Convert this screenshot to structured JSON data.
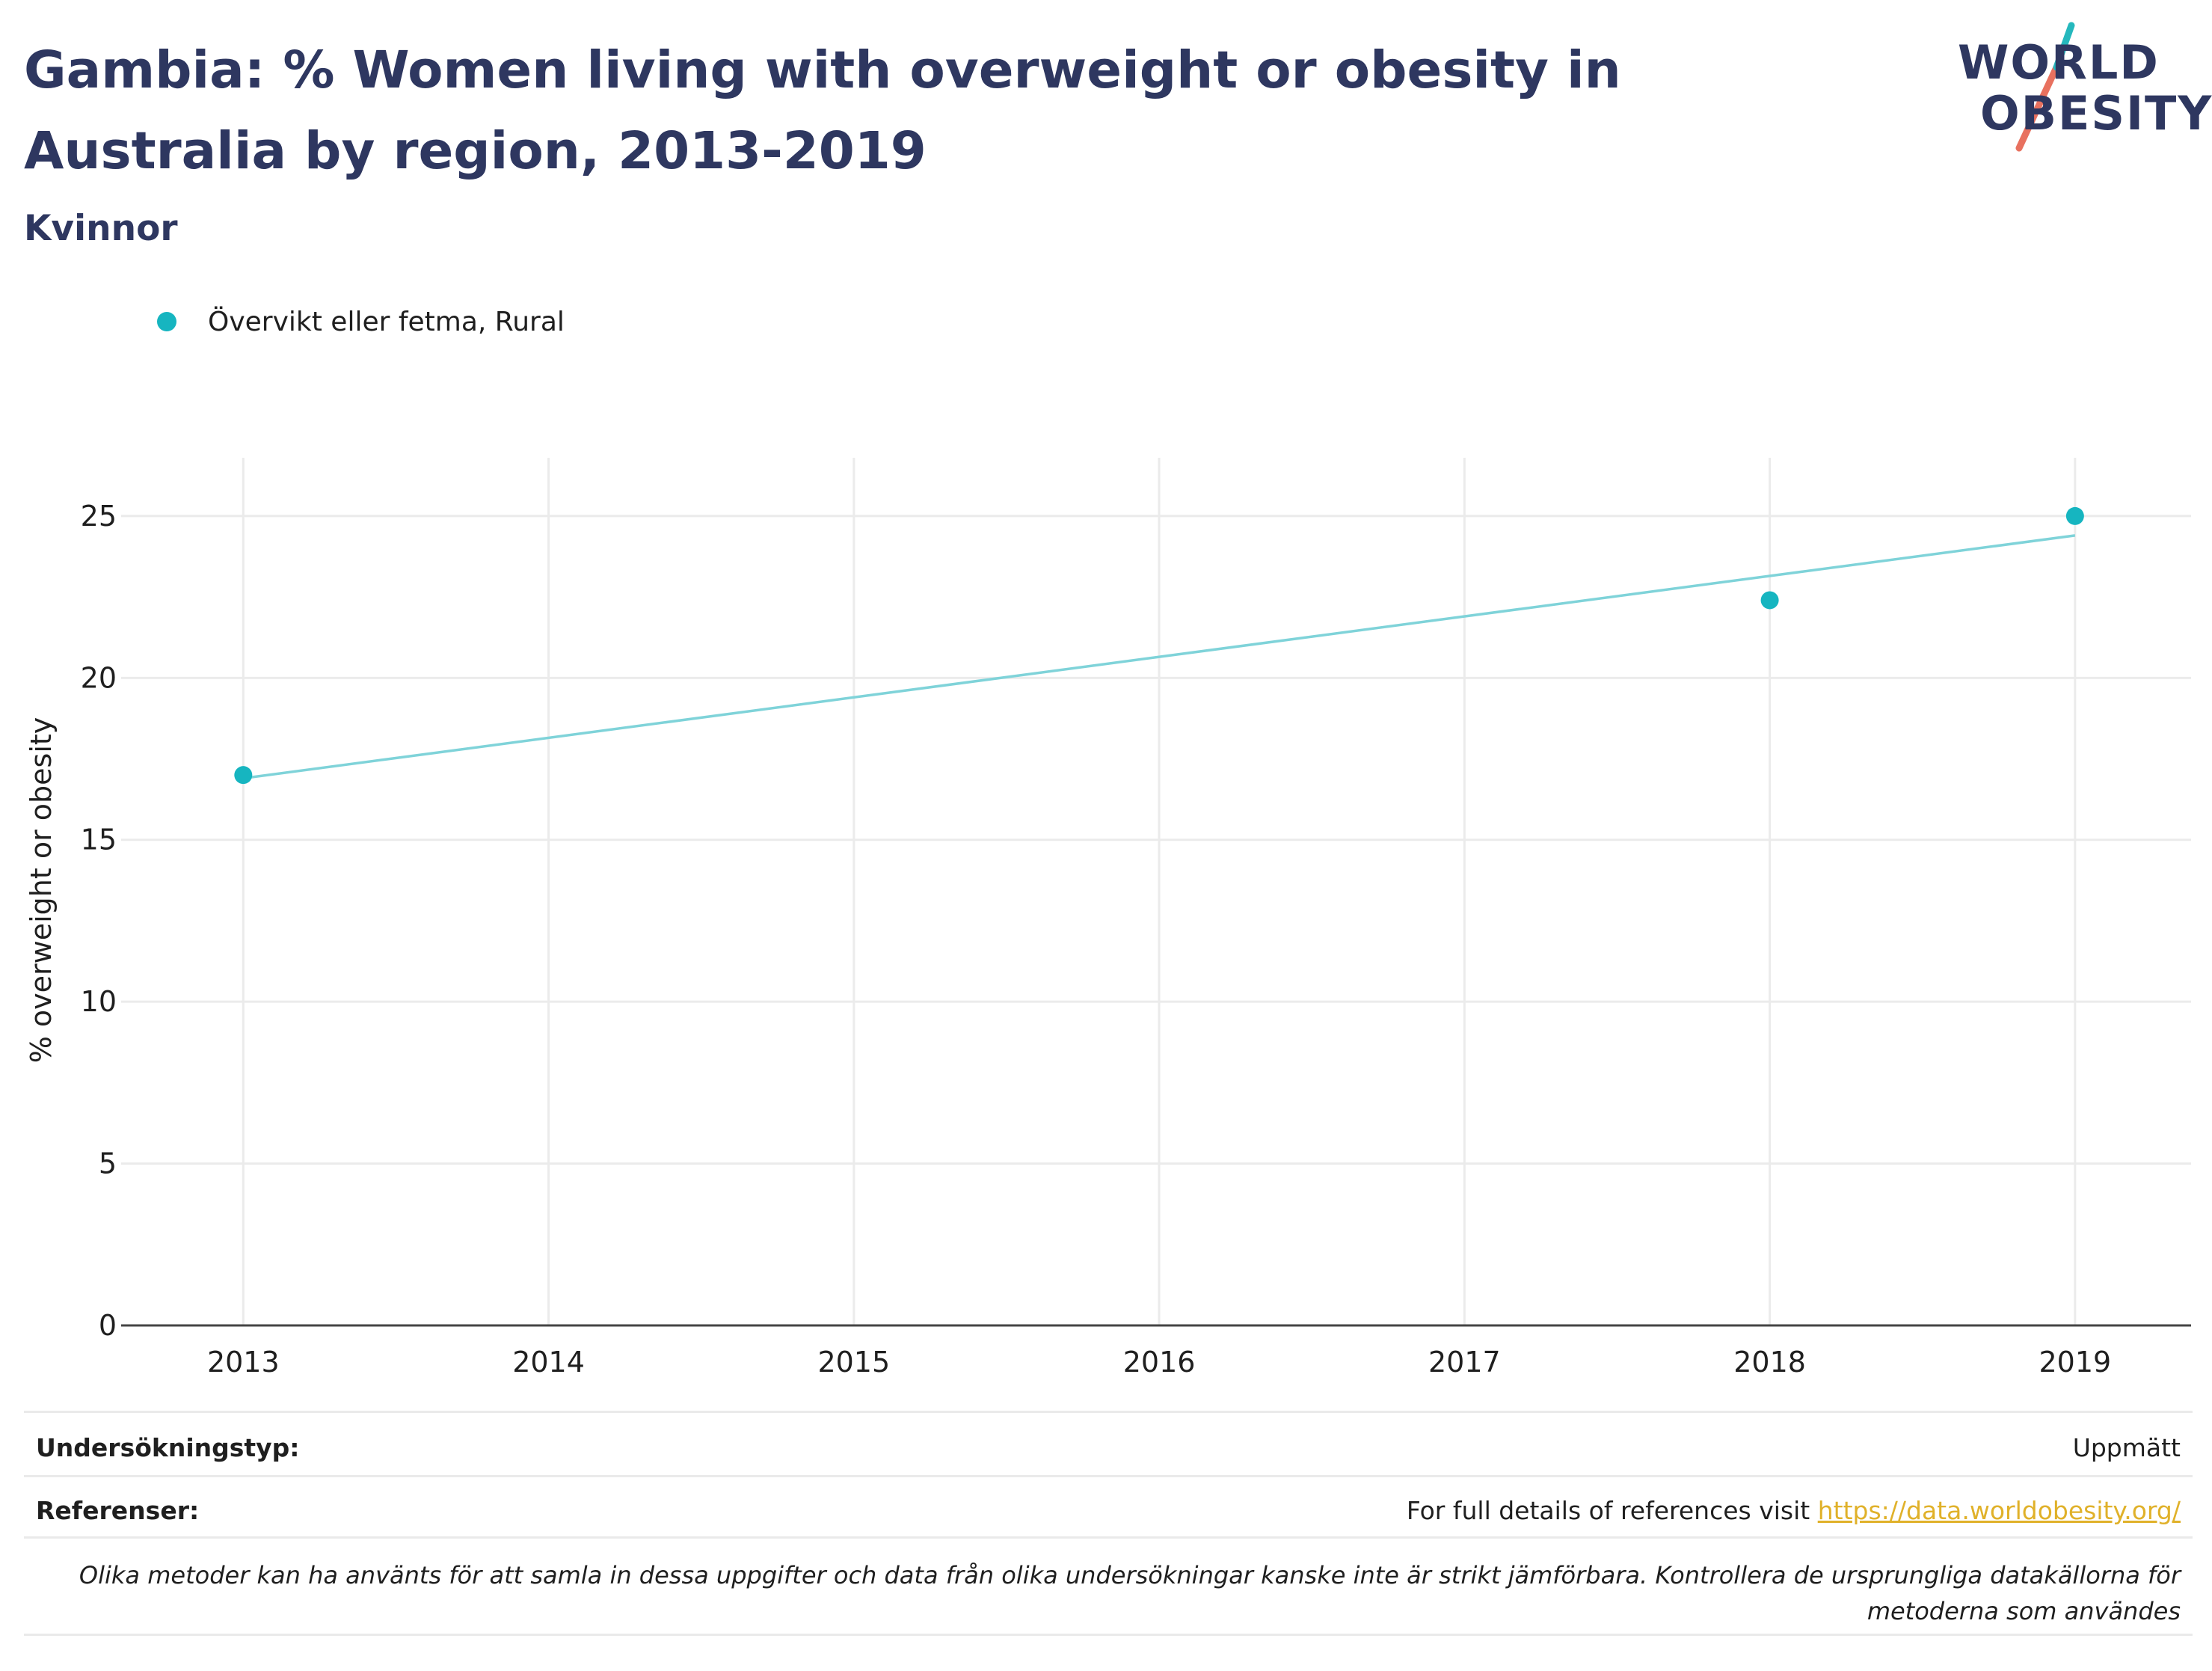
{
  "header": {
    "title": "Gambia: % Women living with overweight or obesity in Australia by region, 2013-2019",
    "subtitle": "Kvinnor"
  },
  "logo": {
    "line1": "WORLD",
    "line2": "OBESITY"
  },
  "colors": {
    "series": "#16b5c0",
    "trend": "#7fd3d9",
    "title": "#2e3760",
    "link": "#e0b12a",
    "grid": "#ebebeb"
  },
  "chart_data": {
    "type": "scatter",
    "title": "Gambia: % Women living with overweight or obesity in Australia by region, 2013-2019",
    "subtitle": "Kvinnor",
    "xlabel": "",
    "ylabel": "% overweight or obesity",
    "x_ticks": [
      2013,
      2014,
      2015,
      2016,
      2017,
      2018,
      2019
    ],
    "y_ticks": [
      0,
      5,
      10,
      15,
      20,
      25
    ],
    "xlim": [
      2012.6,
      2019.38
    ],
    "ylim": [
      0,
      26.8
    ],
    "grid": true,
    "legend_position": "top-left",
    "series": [
      {
        "name": "Övervikt eller fetma, Rural",
        "x": [
          2013,
          2018,
          2019
        ],
        "y": [
          17.0,
          22.4,
          25.0
        ]
      }
    ],
    "trendline": {
      "x": [
        2013,
        2019
      ],
      "y": [
        16.9,
        24.4
      ]
    }
  },
  "footer": {
    "survey_type_label": "Undersökningstyp:",
    "survey_type_value": "Uppmätt",
    "references_label": "Referenser:",
    "references_text": "For full details of references visit",
    "references_link": "https://data.worldobesity.org/",
    "note": "Olika metoder kan ha använts för att samla in dessa uppgifter och data från olika undersökningar kanske inte är strikt jämförbara. Kontrollera de ursprungliga datakällorna för metoderna som användes"
  }
}
